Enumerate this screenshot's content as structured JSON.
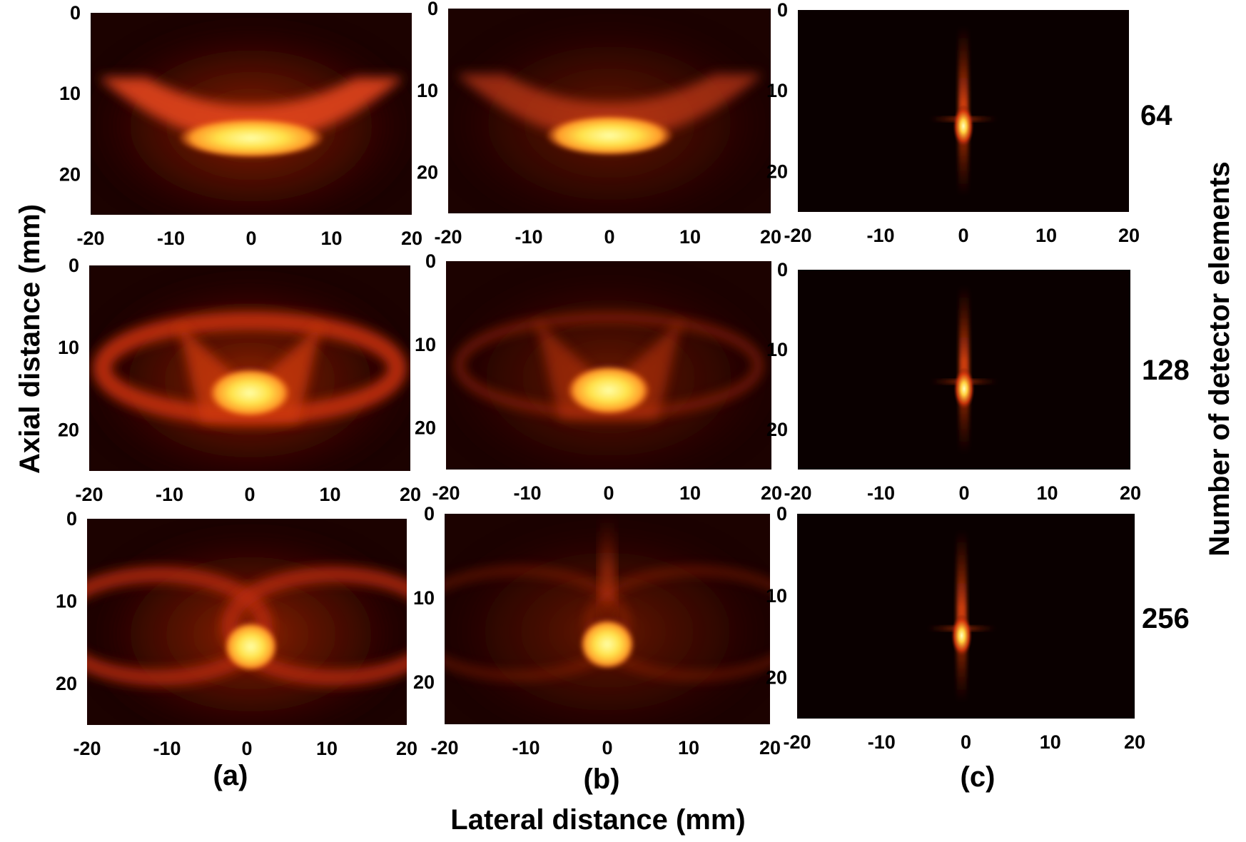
{
  "chart_data": {
    "type": "heatmap",
    "xlabel": "Lateral distance (mm)",
    "ylabel": "Axial distance (mm)",
    "right_label": "Number of detector elements",
    "xlim": [
      -20,
      20
    ],
    "ylim": [
      0,
      25
    ],
    "x_ticks": [
      "-20",
      "-10",
      "0",
      "10",
      "20"
    ],
    "y_ticks": [
      "0",
      "10",
      "20"
    ],
    "columns": [
      {
        "label": "(a)"
      },
      {
        "label": "(b)"
      },
      {
        "label": "(c)"
      }
    ],
    "rows": [
      {
        "label": "64"
      },
      {
        "label": "128"
      },
      {
        "label": "256"
      }
    ],
    "colormap": [
      "#000000",
      "#2a0300",
      "#7a1204",
      "#c8290a",
      "#f0521a",
      "#ff8a2c",
      "#ffd040",
      "#ffff9a"
    ],
    "panels": [
      {
        "row": 0,
        "col": 0,
        "peak_x": 0,
        "peak_y": 15.5
      },
      {
        "row": 0,
        "col": 1,
        "peak_x": 0,
        "peak_y": 15.5
      },
      {
        "row": 0,
        "col": 2,
        "peak_x": 0,
        "peak_y": 13.5
      },
      {
        "row": 1,
        "col": 0,
        "peak_x": 0,
        "peak_y": 15.5
      },
      {
        "row": 1,
        "col": 1,
        "peak_x": 0,
        "peak_y": 15.5
      },
      {
        "row": 1,
        "col": 2,
        "peak_x": 0,
        "peak_y": 14
      },
      {
        "row": 2,
        "col": 0,
        "peak_x": 0.5,
        "peak_y": 15.5
      },
      {
        "row": 2,
        "col": 1,
        "peak_x": 0,
        "peak_y": 15.5
      },
      {
        "row": 2,
        "col": 2,
        "peak_x": -0.5,
        "peak_y": 14
      }
    ]
  }
}
